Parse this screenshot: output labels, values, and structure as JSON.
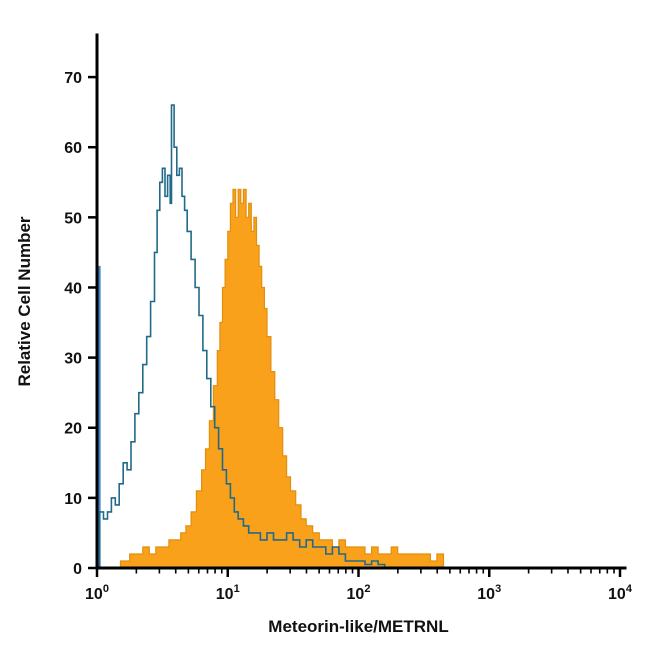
{
  "figure": {
    "background": "#ffffff",
    "axis_color": "#000000"
  },
  "chart_data": {
    "type": "histogram-overlay-flow-cytometry",
    "title": "",
    "xlabel": "Meteorin-like/METRNL",
    "ylabel": "Relative Cell Number",
    "x_scale": "log10",
    "xlog_range": [
      0,
      4
    ],
    "x_tick_base": "10",
    "x_tick_exponents": [
      0,
      1,
      2,
      3,
      4
    ],
    "ylim": [
      0,
      76
    ],
    "y_ticks": [
      0,
      10,
      20,
      30,
      40,
      50,
      60,
      70
    ],
    "grid": false,
    "legend": "none",
    "series": [
      {
        "name": "stained-filled",
        "role": "antibody-stained population (filled)",
        "stroke": "#E18F0E",
        "fill": "#F9A11B",
        "stroke_width": 1.2,
        "points": [
          [
            0.18,
            1
          ],
          [
            0.25,
            2
          ],
          [
            0.3,
            2
          ],
          [
            0.35,
            3
          ],
          [
            0.4,
            2
          ],
          [
            0.45,
            3
          ],
          [
            0.5,
            3
          ],
          [
            0.55,
            4
          ],
          [
            0.6,
            4
          ],
          [
            0.64,
            5
          ],
          [
            0.68,
            6
          ],
          [
            0.72,
            8
          ],
          [
            0.76,
            11
          ],
          [
            0.8,
            14
          ],
          [
            0.83,
            17
          ],
          [
            0.86,
            21
          ],
          [
            0.89,
            26
          ],
          [
            0.92,
            31
          ],
          [
            0.94,
            35
          ],
          [
            0.96,
            40
          ],
          [
            0.98,
            44
          ],
          [
            1.0,
            48
          ],
          [
            1.02,
            52
          ],
          [
            1.04,
            54
          ],
          [
            1.06,
            50
          ],
          [
            1.08,
            54
          ],
          [
            1.1,
            52
          ],
          [
            1.12,
            54
          ],
          [
            1.14,
            50
          ],
          [
            1.16,
            52
          ],
          [
            1.18,
            48
          ],
          [
            1.2,
            50
          ],
          [
            1.22,
            46
          ],
          [
            1.24,
            43
          ],
          [
            1.26,
            40
          ],
          [
            1.28,
            37
          ],
          [
            1.3,
            33
          ],
          [
            1.33,
            28
          ],
          [
            1.36,
            24
          ],
          [
            1.39,
            20
          ],
          [
            1.42,
            16
          ],
          [
            1.45,
            13
          ],
          [
            1.48,
            11
          ],
          [
            1.52,
            9
          ],
          [
            1.56,
            7
          ],
          [
            1.6,
            6
          ],
          [
            1.65,
            5
          ],
          [
            1.7,
            4
          ],
          [
            1.75,
            4
          ],
          [
            1.8,
            3
          ],
          [
            1.85,
            4
          ],
          [
            1.9,
            3
          ],
          [
            1.95,
            3
          ],
          [
            2.0,
            3
          ],
          [
            2.05,
            2
          ],
          [
            2.1,
            3
          ],
          [
            2.15,
            2
          ],
          [
            2.2,
            2
          ],
          [
            2.25,
            3
          ],
          [
            2.3,
            2
          ],
          [
            2.35,
            2
          ],
          [
            2.4,
            2
          ],
          [
            2.45,
            2
          ],
          [
            2.5,
            2
          ],
          [
            2.55,
            1
          ],
          [
            2.6,
            2
          ],
          [
            2.65,
            0
          ]
        ]
      },
      {
        "name": "axis-edge-spike",
        "role": "events piled at first channel",
        "stroke": "#3F82C0",
        "fill": "#3F82C0",
        "stroke_width": 1,
        "points": [
          [
            0.004,
            43
          ],
          [
            0.024,
            43
          ]
        ]
      },
      {
        "name": "control-open",
        "role": "isotype control (open outline)",
        "stroke": "#226A89",
        "fill": "none",
        "stroke_width": 1.6,
        "points": [
          [
            0.02,
            8
          ],
          [
            0.05,
            7
          ],
          [
            0.08,
            8
          ],
          [
            0.11,
            10
          ],
          [
            0.14,
            9
          ],
          [
            0.17,
            12
          ],
          [
            0.2,
            15
          ],
          [
            0.23,
            14
          ],
          [
            0.26,
            18
          ],
          [
            0.29,
            22
          ],
          [
            0.32,
            25
          ],
          [
            0.35,
            29
          ],
          [
            0.38,
            33
          ],
          [
            0.41,
            38
          ],
          [
            0.44,
            45
          ],
          [
            0.46,
            51
          ],
          [
            0.48,
            55
          ],
          [
            0.5,
            57
          ],
          [
            0.52,
            53
          ],
          [
            0.54,
            56
          ],
          [
            0.56,
            52
          ],
          [
            0.57,
            66
          ],
          [
            0.59,
            60
          ],
          [
            0.61,
            56
          ],
          [
            0.63,
            57
          ],
          [
            0.65,
            53
          ],
          [
            0.67,
            51
          ],
          [
            0.69,
            48
          ],
          [
            0.72,
            44
          ],
          [
            0.75,
            40
          ],
          [
            0.78,
            36
          ],
          [
            0.81,
            31
          ],
          [
            0.84,
            27
          ],
          [
            0.87,
            23
          ],
          [
            0.9,
            20
          ],
          [
            0.93,
            17
          ],
          [
            0.96,
            14
          ],
          [
            0.99,
            12
          ],
          [
            1.02,
            10
          ],
          [
            1.05,
            8
          ],
          [
            1.08,
            7
          ],
          [
            1.12,
            6
          ],
          [
            1.16,
            5
          ],
          [
            1.2,
            5
          ],
          [
            1.25,
            4
          ],
          [
            1.3,
            5
          ],
          [
            1.35,
            4
          ],
          [
            1.4,
            4
          ],
          [
            1.45,
            5
          ],
          [
            1.5,
            4
          ],
          [
            1.55,
            3
          ],
          [
            1.6,
            4
          ],
          [
            1.65,
            3
          ],
          [
            1.7,
            3
          ],
          [
            1.75,
            2
          ],
          [
            1.8,
            3
          ],
          [
            1.85,
            2
          ],
          [
            1.9,
            1
          ],
          [
            1.95,
            1
          ],
          [
            2.0,
            1
          ],
          [
            2.05,
            0.5
          ],
          [
            2.1,
            1
          ],
          [
            2.15,
            0.5
          ],
          [
            2.2,
            0
          ]
        ]
      }
    ]
  }
}
